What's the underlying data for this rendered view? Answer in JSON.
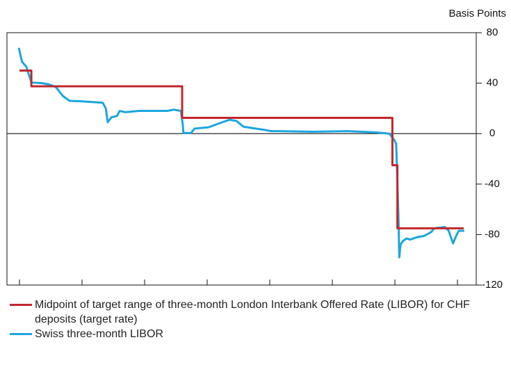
{
  "chart_data": {
    "type": "line",
    "y_label": "Basis Points",
    "xlim": [
      2008.8,
      2016.3
    ],
    "xticks": [
      2009,
      2010,
      2011,
      2012,
      2013,
      2014,
      2015,
      2016
    ],
    "ylim": [
      -120,
      80
    ],
    "yticks": [
      80,
      40,
      0,
      -40,
      -80,
      -120
    ],
    "y_axis_side": "right",
    "zero_line": true,
    "series": [
      {
        "name": "Midpoint of target range of three-month London Interbank Offered Rate (LIBOR) for CHF deposits (target rate)",
        "color": "#c1272d",
        "x": [
          2009.0,
          2009.19,
          2009.19,
          2011.6,
          2011.6,
          2014.96,
          2014.96,
          2015.04,
          2015.04,
          2016.1
        ],
        "values": [
          50,
          50,
          37.5,
          37.5,
          12.5,
          12.5,
          -25,
          -25,
          -75,
          -75
        ]
      },
      {
        "name": "Swiss three-month LIBOR",
        "color": "#1ba6df",
        "x": [
          2008.99,
          2009.04,
          2009.11,
          2009.19,
          2009.36,
          2009.47,
          2009.58,
          2009.69,
          2009.8,
          2010.02,
          2010.33,
          2010.38,
          2010.41,
          2010.47,
          2010.56,
          2010.6,
          2010.69,
          2010.91,
          2011.36,
          2011.47,
          2011.58,
          2011.61,
          2011.62,
          2011.74,
          2011.8,
          2012.02,
          2012.24,
          2012.36,
          2012.47,
          2012.58,
          2012.91,
          2013.02,
          2013.13,
          2013.69,
          2014.24,
          2014.69,
          2014.91,
          2014.99,
          2015.02,
          2015.04,
          2015.06,
          2015.07,
          2015.09,
          2015.13,
          2015.19,
          2015.24,
          2015.36,
          2015.47,
          2015.58,
          2015.63,
          2015.8,
          2015.86,
          2015.93,
          2015.97,
          2016.02,
          2016.11
        ],
        "values": [
          68,
          57,
          53,
          40.5,
          40,
          39,
          37,
          30,
          26,
          25.5,
          24.5,
          20,
          9,
          13,
          14,
          18,
          17,
          18,
          18,
          19,
          18,
          7,
          0.5,
          0.5,
          4,
          5,
          9,
          11,
          10,
          5.5,
          3,
          2,
          2,
          1.5,
          2,
          1,
          0,
          -5,
          -8,
          -38,
          -72,
          -98,
          -88,
          -85,
          -83,
          -84,
          -82,
          -81,
          -78,
          -75,
          -74,
          -77,
          -87,
          -82,
          -77,
          -77
        ]
      }
    ]
  }
}
